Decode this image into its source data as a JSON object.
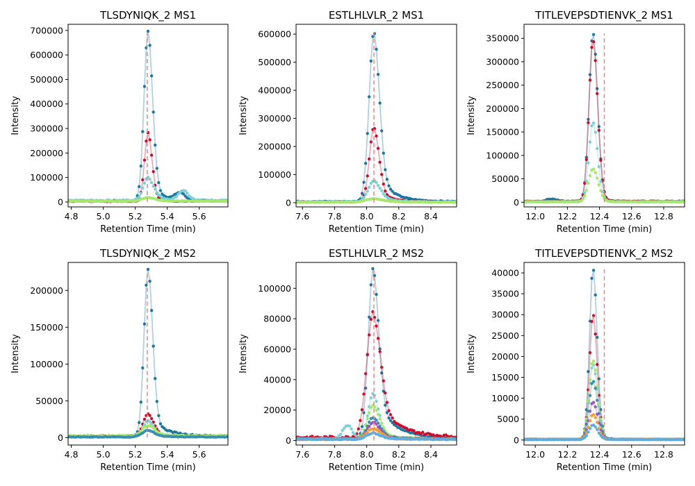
{
  "colors": {
    "apex_line": "#f08080",
    "series": [
      "#1f77a0",
      "#c8102e",
      "#7fcfd6",
      "#a6e86e",
      "#3a8fb0",
      "#9b59b6",
      "#f0a030",
      "#5dade2"
    ]
  },
  "chart_data": [
    {
      "type": "line",
      "title": "TLSDYNIQK_2 MS1",
      "xlabel": "Retention Time (min)",
      "ylabel": "Intensity",
      "xlim": [
        4.78,
        5.78
      ],
      "ylim": [
        -20000,
        725000
      ],
      "xticks": [
        4.8,
        5.0,
        5.2,
        5.4,
        5.6
      ],
      "xtick_labels": [
        "4.8",
        "5.0",
        "5.2",
        "5.4",
        "5.6"
      ],
      "yticks": [
        0,
        100000,
        200000,
        300000,
        400000,
        500000,
        600000,
        700000
      ],
      "ytick_labels": [
        "0",
        "100000",
        "200000",
        "300000",
        "400000",
        "500000",
        "600000",
        "700000"
      ],
      "apex": 5.275,
      "series": [
        {
          "center": 5.28,
          "height": 690000,
          "width": 0.025,
          "tail": 0.07,
          "tail_frac": 0.12,
          "baseline": 5000,
          "shoulder": [
            5.48,
            30000
          ]
        },
        {
          "center": 5.28,
          "height": 280000,
          "width": 0.022,
          "tail": 0.05,
          "tail_frac": 0.1,
          "baseline": 3000
        },
        {
          "center": 5.28,
          "height": 95000,
          "width": 0.03,
          "tail": 0.08,
          "tail_frac": 0.3,
          "baseline": 6000,
          "shoulder": [
            5.5,
            40000
          ]
        },
        {
          "center": 5.28,
          "height": 15000,
          "width": 0.04,
          "tail": 0.1,
          "tail_frac": 0.3,
          "baseline": 3000
        }
      ]
    },
    {
      "type": "line",
      "title": "ESTLHLVLR_2 MS1",
      "xlabel": "Retention Time (min)",
      "ylabel": "Intensity",
      "xlim": [
        7.56,
        8.56
      ],
      "ylim": [
        -15000,
        635000
      ],
      "xticks": [
        7.6,
        7.8,
        8.0,
        8.2,
        8.4
      ],
      "xtick_labels": [
        "7.6",
        "7.8",
        "8.0",
        "8.2",
        "8.4"
      ],
      "yticks": [
        0,
        100000,
        200000,
        300000,
        400000,
        500000,
        600000
      ],
      "ytick_labels": [
        "0",
        "100000",
        "200000",
        "300000",
        "400000",
        "500000",
        "600000"
      ],
      "apex": 8.045,
      "series": [
        {
          "center": 8.045,
          "height": 605000,
          "width": 0.03,
          "tail": 0.09,
          "tail_frac": 0.2,
          "baseline": 4000
        },
        {
          "center": 8.045,
          "height": 265000,
          "width": 0.028,
          "tail": 0.08,
          "tail_frac": 0.18,
          "baseline": 3000
        },
        {
          "center": 8.045,
          "height": 75000,
          "width": 0.035,
          "tail": 0.09,
          "tail_frac": 0.3,
          "baseline": 3000
        },
        {
          "center": 8.045,
          "height": 12000,
          "width": 0.05,
          "tail": 0.1,
          "tail_frac": 0.4,
          "baseline": 2000
        }
      ]
    },
    {
      "type": "line",
      "title": "TITLEVEPSDTIENVK_2 MS1",
      "xlabel": "Retention Time (min)",
      "ylabel": "Intensity",
      "xlim": [
        11.93,
        12.93
      ],
      "ylim": [
        -10000,
        380000
      ],
      "xticks": [
        12.0,
        12.2,
        12.4,
        12.6,
        12.8
      ],
      "xtick_labels": [
        "12.0",
        "12.2",
        "12.4",
        "12.6",
        "12.8"
      ],
      "yticks": [
        0,
        50000,
        100000,
        150000,
        200000,
        250000,
        300000,
        350000
      ],
      "ytick_labels": [
        "0",
        "50000",
        "100000",
        "150000",
        "200000",
        "250000",
        "300000",
        "350000"
      ],
      "apex": 12.43,
      "series": [
        {
          "center": 12.36,
          "height": 360000,
          "width": 0.025,
          "tail": 0.04,
          "tail_frac": 0.05,
          "baseline": 2000,
          "shoulder": [
            12.1,
            5000
          ]
        },
        {
          "center": 12.36,
          "height": 345000,
          "width": 0.025,
          "tail": 0.04,
          "tail_frac": 0.05,
          "baseline": 1500
        },
        {
          "center": 12.36,
          "height": 170000,
          "width": 0.025,
          "tail": 0.04,
          "tail_frac": 0.05,
          "baseline": 1000
        },
        {
          "center": 12.36,
          "height": 70000,
          "width": 0.028,
          "tail": 0.04,
          "tail_frac": 0.05,
          "baseline": 1000
        }
      ]
    },
    {
      "type": "line",
      "title": "TLSDYNIQK_2 MS2",
      "xlabel": "Retention Time (min)",
      "ylabel": "Intensity",
      "xlim": [
        4.78,
        5.78
      ],
      "ylim": [
        -10000,
        238000
      ],
      "xticks": [
        4.8,
        5.0,
        5.2,
        5.4,
        5.6
      ],
      "xtick_labels": [
        "4.8",
        "5.0",
        "5.2",
        "5.4",
        "5.6"
      ],
      "yticks": [
        0,
        50000,
        100000,
        150000,
        200000
      ],
      "ytick_labels": [
        "0",
        "50000",
        "100000",
        "150000",
        "200000"
      ],
      "apex": 5.275,
      "series": [
        {
          "center": 5.28,
          "height": 227000,
          "width": 0.025,
          "tail": 0.1,
          "tail_frac": 0.12,
          "baseline": 2000
        },
        {
          "center": 5.28,
          "height": 31000,
          "width": 0.03,
          "tail": 0.08,
          "tail_frac": 0.2,
          "baseline": 1500
        },
        {
          "center": 5.28,
          "height": 22000,
          "width": 0.03,
          "tail": 0.08,
          "tail_frac": 0.2,
          "baseline": 1500
        },
        {
          "center": 5.28,
          "height": 14000,
          "width": 0.035,
          "tail": 0.08,
          "tail_frac": 0.2,
          "baseline": 2500
        },
        {
          "center": 5.28,
          "height": 9000,
          "width": 0.035,
          "tail": 0.08,
          "tail_frac": 0.2,
          "baseline": 1000
        }
      ]
    },
    {
      "type": "line",
      "title": "ESTLHLVLR_2 MS2",
      "xlabel": "Retention Time (min)",
      "ylabel": "Intensity",
      "xlim": [
        7.56,
        8.56
      ],
      "ylim": [
        -3000,
        117000
      ],
      "xticks": [
        7.6,
        7.8,
        8.0,
        8.2,
        8.4
      ],
      "xtick_labels": [
        "7.6",
        "7.8",
        "8.0",
        "8.2",
        "8.4"
      ],
      "yticks": [
        0,
        20000,
        40000,
        60000,
        80000,
        100000
      ],
      "ytick_labels": [
        "0",
        "20000",
        "40000",
        "60000",
        "80000",
        "100000"
      ],
      "apex": 8.045,
      "series": [
        {
          "center": 8.04,
          "height": 112000,
          "width": 0.03,
          "tail": 0.12,
          "tail_frac": 0.25,
          "baseline": 1000
        },
        {
          "center": 8.04,
          "height": 82000,
          "width": 0.04,
          "tail": 0.14,
          "tail_frac": 0.3,
          "baseline": 2000
        },
        {
          "center": 8.04,
          "height": 30000,
          "width": 0.03,
          "tail": 0.08,
          "tail_frac": 0.25,
          "baseline": 1000,
          "shoulder": [
            7.88,
            9000
          ]
        },
        {
          "center": 8.04,
          "height": 22000,
          "width": 0.035,
          "tail": 0.1,
          "tail_frac": 0.25,
          "baseline": 1000
        },
        {
          "center": 8.04,
          "height": 14000,
          "width": 0.035,
          "tail": 0.1,
          "tail_frac": 0.25,
          "baseline": 1000
        },
        {
          "center": 8.04,
          "height": 11000,
          "width": 0.035,
          "tail": 0.1,
          "tail_frac": 0.25,
          "baseline": 1000
        },
        {
          "center": 8.04,
          "height": 7000,
          "width": 0.04,
          "tail": 0.1,
          "tail_frac": 0.25,
          "baseline": 800
        },
        {
          "center": 8.04,
          "height": 4000,
          "width": 0.04,
          "tail": 0.1,
          "tail_frac": 0.25,
          "baseline": 800
        }
      ]
    },
    {
      "type": "line",
      "title": "TITLEVEPSDTIENVK_2 MS2",
      "xlabel": "Retention Time (min)",
      "ylabel": "Intensity",
      "xlim": [
        11.93,
        12.93
      ],
      "ylim": [
        -1200,
        42500
      ],
      "xticks": [
        12.0,
        12.2,
        12.4,
        12.6,
        12.8
      ],
      "xtick_labels": [
        "12.0",
        "12.2",
        "12.4",
        "12.6",
        "12.8"
      ],
      "yticks": [
        0,
        5000,
        10000,
        15000,
        20000,
        25000,
        30000,
        35000,
        40000
      ],
      "ytick_labels": [
        "0",
        "5000",
        "10000",
        "15000",
        "20000",
        "25000",
        "30000",
        "35000",
        "40000"
      ],
      "apex": 12.43,
      "series": [
        {
          "center": 12.36,
          "height": 41000,
          "width": 0.022,
          "tail": 0.04,
          "tail_frac": 0.05,
          "baseline": 150
        },
        {
          "center": 12.36,
          "height": 30000,
          "width": 0.022,
          "tail": 0.04,
          "tail_frac": 0.05,
          "baseline": 150
        },
        {
          "center": 12.36,
          "height": 18000,
          "width": 0.025,
          "tail": 0.04,
          "tail_frac": 0.05,
          "baseline": 150
        },
        {
          "center": 12.36,
          "height": 19000,
          "width": 0.025,
          "tail": 0.04,
          "tail_frac": 0.05,
          "baseline": 150
        },
        {
          "center": 12.36,
          "height": 14000,
          "width": 0.025,
          "tail": 0.04,
          "tail_frac": 0.05,
          "baseline": 150
        },
        {
          "center": 12.36,
          "height": 9000,
          "width": 0.025,
          "tail": 0.04,
          "tail_frac": 0.05,
          "baseline": 150
        },
        {
          "center": 12.36,
          "height": 6000,
          "width": 0.025,
          "tail": 0.04,
          "tail_frac": 0.05,
          "baseline": 150
        },
        {
          "center": 12.36,
          "height": 3500,
          "width": 0.025,
          "tail": 0.04,
          "tail_frac": 0.05,
          "baseline": 150
        }
      ]
    }
  ]
}
